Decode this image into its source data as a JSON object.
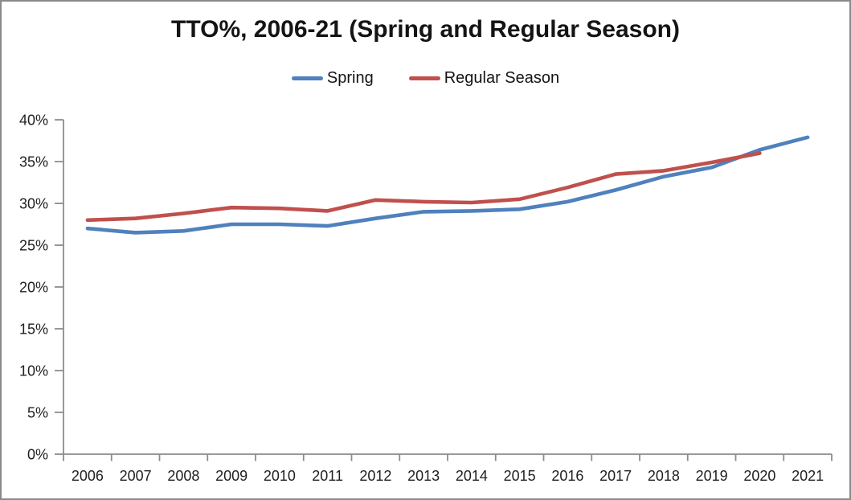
{
  "chart_data": {
    "type": "line",
    "title": "TTO%, 2006-21 (Spring and Regular Season)",
    "categories": [
      "2006",
      "2007",
      "2008",
      "2009",
      "2010",
      "2011",
      "2012",
      "2013",
      "2014",
      "2015",
      "2016",
      "2017",
      "2018",
      "2019",
      "2020",
      "2021"
    ],
    "series": [
      {
        "name": "Spring",
        "color": "#4F81BD",
        "values": [
          27.0,
          26.5,
          26.7,
          27.5,
          27.5,
          27.3,
          28.2,
          29.0,
          29.1,
          29.3,
          30.2,
          31.6,
          33.2,
          34.3,
          36.4,
          37.9
        ]
      },
      {
        "name": "Regular Season",
        "color": "#C0504D",
        "values": [
          28.0,
          28.2,
          28.8,
          29.5,
          29.4,
          29.1,
          30.4,
          30.2,
          30.1,
          30.5,
          31.9,
          33.5,
          33.9,
          34.9,
          36.0,
          null
        ]
      }
    ],
    "xlabel": "",
    "ylabel": "",
    "ylim": [
      0,
      40
    ],
    "ytick_labels": [
      "0%",
      "5%",
      "10%",
      "15%",
      "20%",
      "25%",
      "30%",
      "35%",
      "40%"
    ],
    "legend_position": "top-center",
    "grid": false,
    "axis_color": "#8C8C8C",
    "text_color": "#1f1f1f",
    "background_color": "#ffffff",
    "border_color": "#8a8a8a"
  }
}
